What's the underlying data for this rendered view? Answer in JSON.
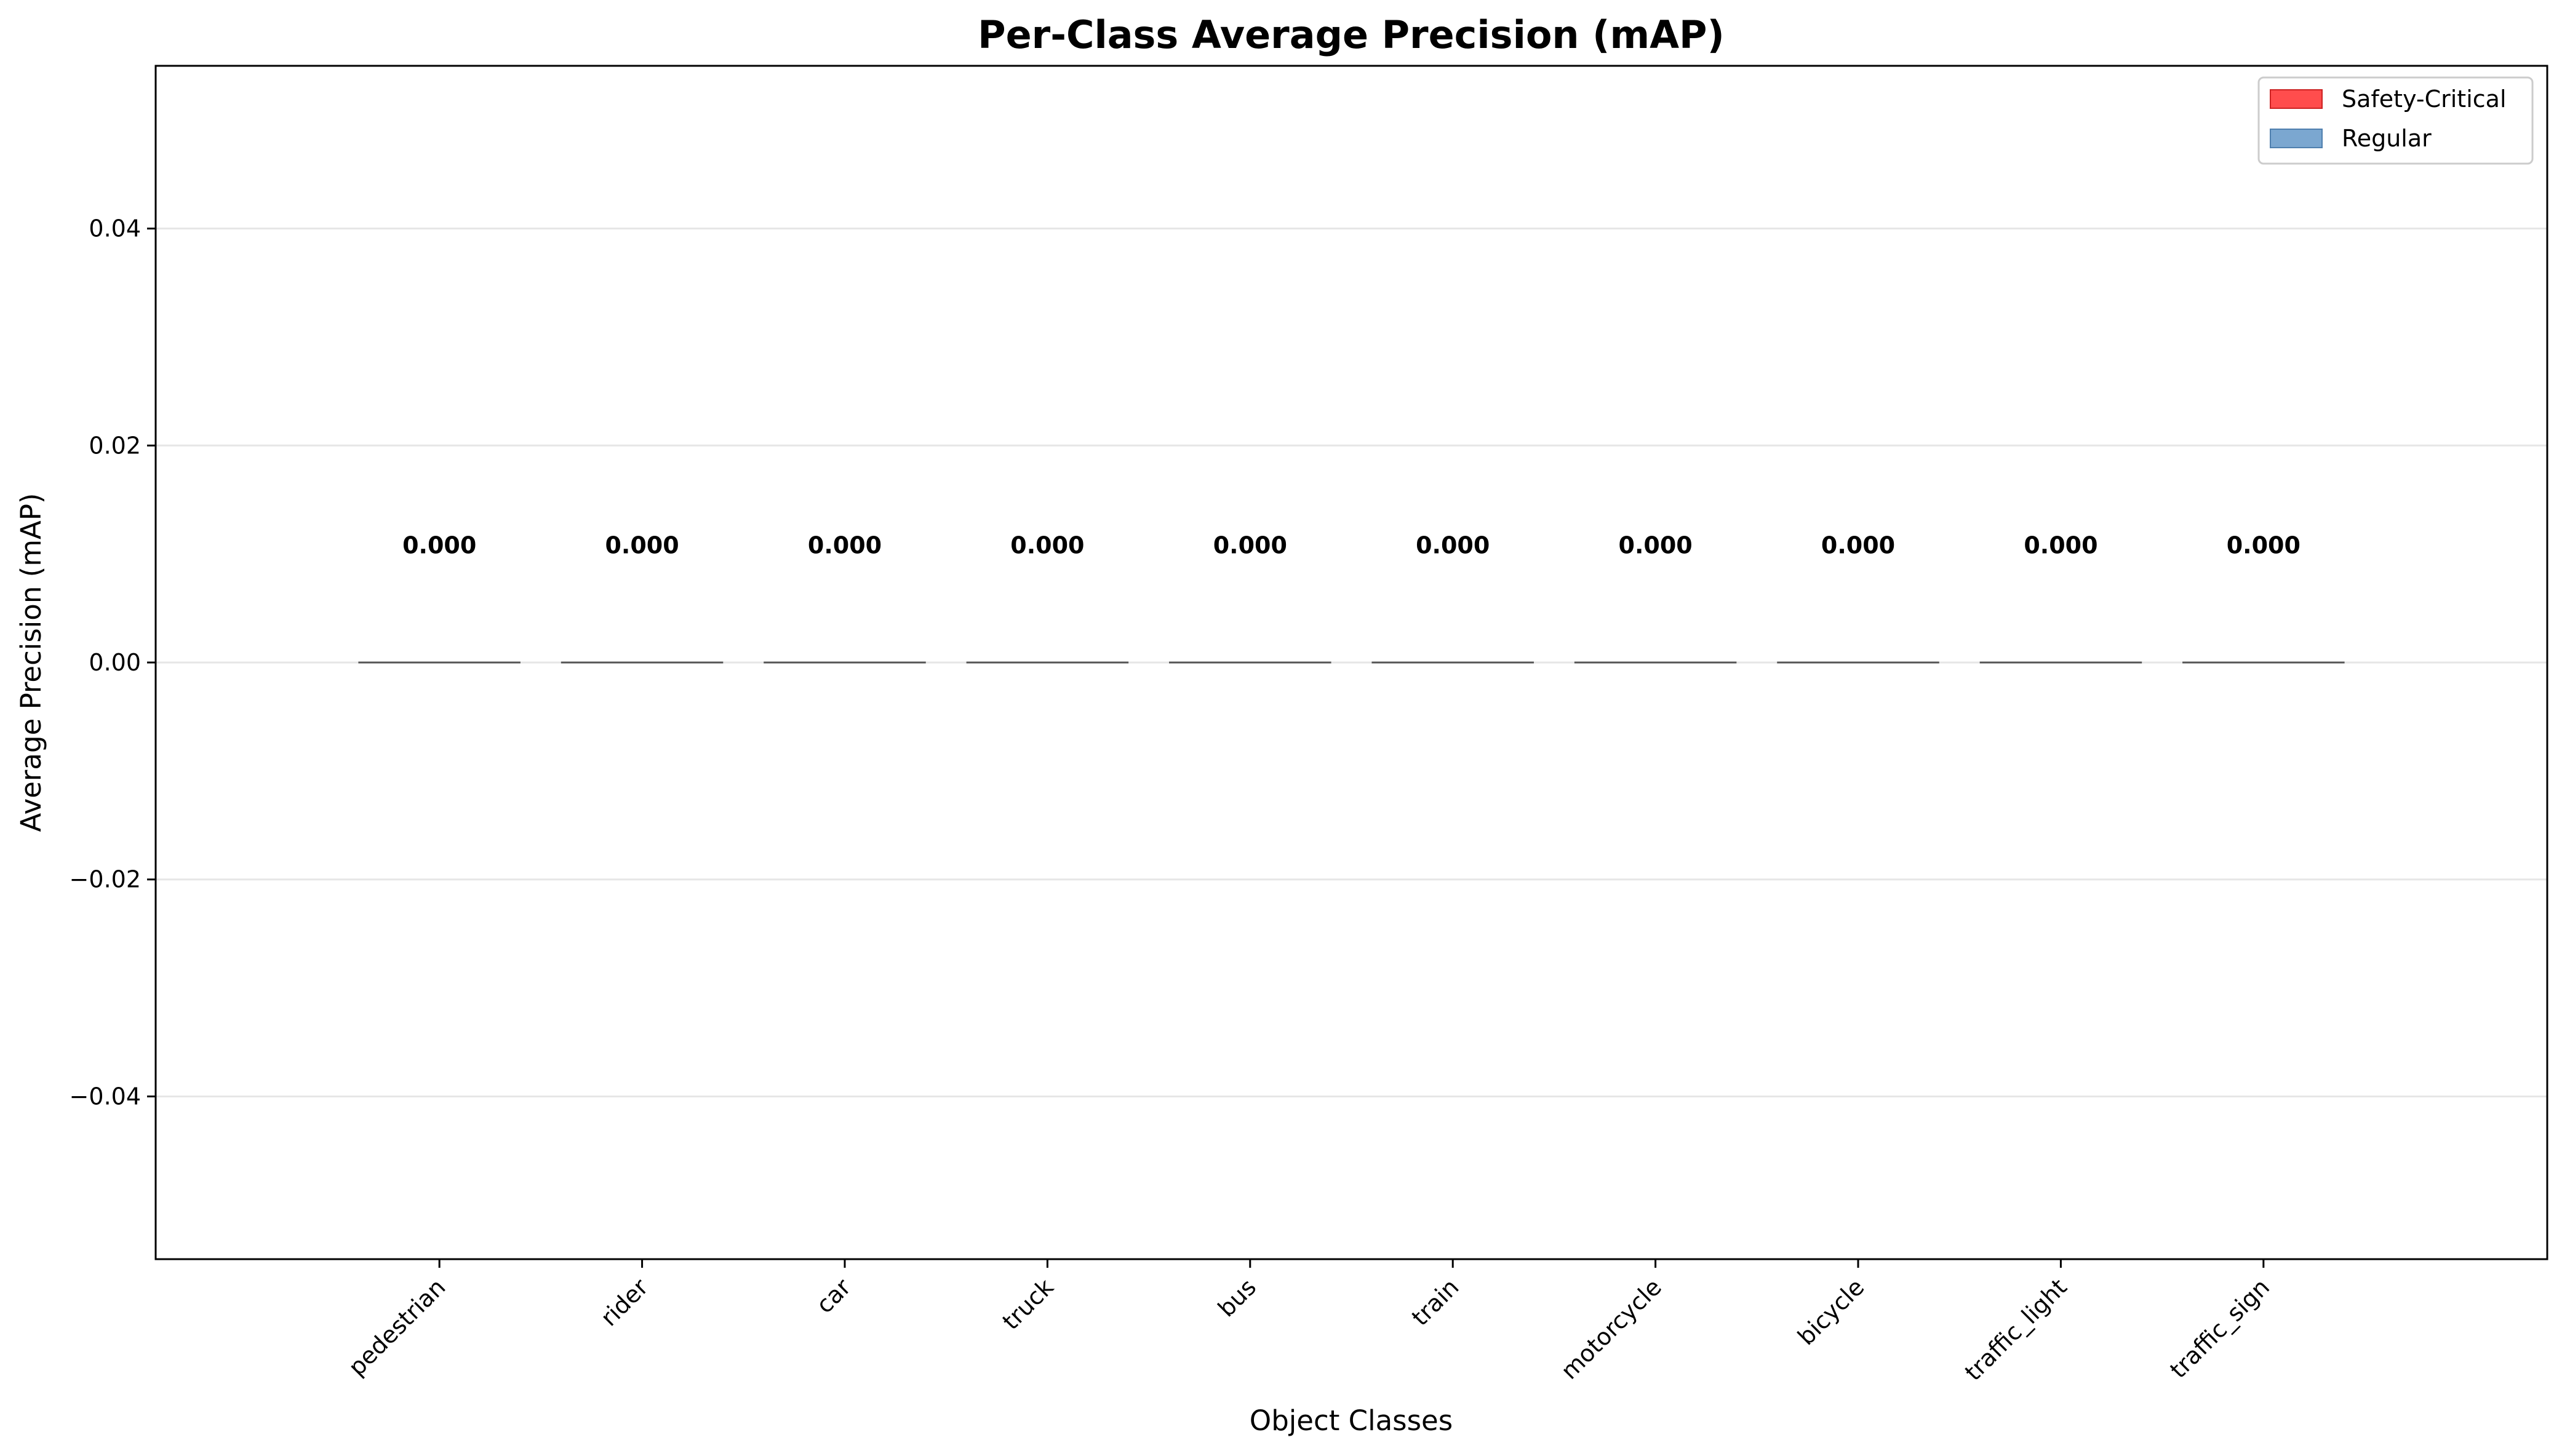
{
  "chart_data": {
    "type": "bar",
    "title": "Per-Class Average Precision (mAP)",
    "xlabel": "Object Classes",
    "ylabel": "Average Precision (mAP)",
    "categories": [
      "pedestrian",
      "rider",
      "car",
      "truck",
      "bus",
      "train",
      "motorcycle",
      "bicycle",
      "traffic_light",
      "traffic_sign"
    ],
    "values": [
      0.0,
      0.0,
      0.0,
      0.0,
      0.0,
      0.0,
      0.0,
      0.0,
      0.0,
      0.0
    ],
    "value_labels": [
      "0.000",
      "0.000",
      "0.000",
      "0.000",
      "0.000",
      "0.000",
      "0.000",
      "0.000",
      "0.000",
      "0.000"
    ],
    "ylim": [
      -0.055,
      0.055
    ],
    "yticks": [
      -0.04,
      -0.02,
      0.0,
      0.02,
      0.04
    ],
    "ytick_labels": [
      "−0.04",
      "−0.02",
      "0.00",
      "0.02",
      "0.04"
    ],
    "grid": "y",
    "legend": {
      "placement": "top-right",
      "entries": [
        {
          "label": "Safety-Critical",
          "color": "#ff4d4d"
        },
        {
          "label": "Regular",
          "color": "#7ba7d0"
        }
      ]
    },
    "bar_edge_color": "#555555"
  }
}
